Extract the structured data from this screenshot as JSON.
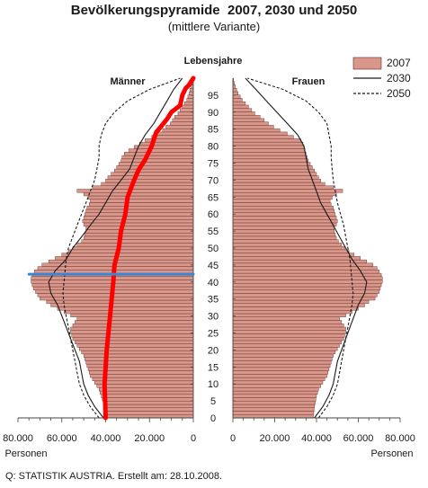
{
  "chart_data": {
    "type": "bar",
    "title": "Bevölkerungspyramide  2007, 2030 und 2050",
    "subtitle": "(mittlere Variante)",
    "age_axis_label": "Lebensjahre",
    "left_label": "Männer",
    "right_label": "Frauen",
    "unit_label_left": "Personen",
    "unit_label_right": "Personen",
    "source": "Q: STATISTIK AUSTRIA. Erstellt am: 28.10.2008.",
    "age_ticks": [
      "0",
      "5",
      "10",
      "15",
      "20",
      "25",
      "30",
      "35",
      "40",
      "45",
      "50",
      "55",
      "60",
      "65",
      "70",
      "75",
      "80",
      "85",
      "90",
      "95"
    ],
    "x_ticks_left": [
      "80.000",
      "60.000",
      "40.000",
      "20.000",
      "0"
    ],
    "x_ticks_right": [
      "0",
      "20.000",
      "40.000",
      "60.000",
      "80.000"
    ],
    "xlim": [
      0,
      80000
    ],
    "ylim": [
      0,
      100
    ],
    "legend": [
      {
        "label": "2007",
        "style": "bar"
      },
      {
        "label": "2030",
        "style": "solid"
      },
      {
        "label": "2050",
        "style": "dashed"
      }
    ],
    "legend_placement": "top-right",
    "colors": {
      "bar_fill": "#d9968a",
      "bar_stroke": "#5a2a22",
      "red_overlay": "#ff0000",
      "blue_overlay": "#3a86d6",
      "axis": "#444444"
    },
    "ages": [
      0,
      1,
      2,
      3,
      4,
      5,
      6,
      7,
      8,
      9,
      10,
      11,
      12,
      13,
      14,
      15,
      16,
      17,
      18,
      19,
      20,
      21,
      22,
      23,
      24,
      25,
      26,
      27,
      28,
      29,
      30,
      31,
      32,
      33,
      34,
      35,
      36,
      37,
      38,
      39,
      40,
      41,
      42,
      43,
      44,
      45,
      46,
      47,
      48,
      49,
      50,
      51,
      52,
      53,
      54,
      55,
      56,
      57,
      58,
      59,
      60,
      61,
      62,
      63,
      64,
      65,
      66,
      67,
      68,
      69,
      70,
      71,
      72,
      73,
      74,
      75,
      76,
      77,
      78,
      79,
      80,
      81,
      82,
      83,
      84,
      85,
      86,
      87,
      88,
      89,
      90,
      91,
      92,
      93,
      94,
      95,
      96,
      97,
      98,
      99,
      100
    ],
    "series": [
      {
        "name": "2007",
        "side": "Männer",
        "values": [
          40000,
          40200,
          40400,
          40600,
          41000,
          41500,
          42000,
          42500,
          43000,
          44000,
          45000,
          46000,
          47000,
          47500,
          48000,
          48500,
          49000,
          49500,
          50000,
          51000,
          52000,
          53000,
          54000,
          55000,
          55500,
          56000,
          56000,
          55000,
          54000,
          53000,
          56000,
          59000,
          62000,
          65000,
          67000,
          70000,
          71000,
          72000,
          73000,
          73500,
          74000,
          74000,
          73500,
          72500,
          71000,
          69000,
          66000,
          63000,
          60000,
          57000,
          55000,
          53000,
          51000,
          50000,
          49500,
          49000,
          49000,
          50000,
          50500,
          50000,
          49500,
          49000,
          48500,
          47500,
          47000,
          48000,
          50000,
          53000,
          46000,
          42000,
          40000,
          39000,
          37500,
          36000,
          35000,
          34000,
          33000,
          32500,
          31500,
          29500,
          27000,
          24500,
          22000,
          19000,
          16500,
          14000,
          12500,
          10500,
          9500,
          8500,
          7000,
          6000,
          5000,
          4000,
          3000,
          2500,
          2000,
          1500,
          1000,
          500,
          200
        ]
      },
      {
        "name": "2007",
        "side": "Frauen",
        "values": [
          38500,
          38700,
          38900,
          39100,
          39400,
          39700,
          40000,
          40500,
          41000,
          42000,
          43000,
          44000,
          45000,
          45500,
          46000,
          46500,
          47000,
          47500,
          48000,
          49000,
          50000,
          51000,
          52000,
          53000,
          53500,
          54000,
          54000,
          53000,
          52000,
          51000,
          54000,
          57000,
          60000,
          63000,
          65000,
          68000,
          69000,
          70000,
          70500,
          71000,
          71500,
          71500,
          71000,
          70000,
          69000,
          67000,
          64000,
          61000,
          58000,
          55500,
          53500,
          52000,
          50500,
          49500,
          49000,
          48500,
          48500,
          49500,
          50000,
          49500,
          49000,
          48500,
          48000,
          47000,
          46500,
          47500,
          49500,
          52500,
          48000,
          44000,
          42000,
          41000,
          40000,
          39000,
          38000,
          37000,
          36000,
          35500,
          35000,
          34500,
          34000,
          33500,
          32500,
          29000,
          26000,
          22500,
          19500,
          17000,
          15000,
          13000,
          10500,
          9000,
          7500,
          6000,
          4500,
          3500,
          2500,
          1800,
          1200,
          700,
          300
        ]
      },
      {
        "name": "2030",
        "side": "Männer",
        "values": [
          41000,
          45000,
          48000,
          50000,
          51000,
          52000,
          54000,
          56000,
          58000,
          60000,
          62000,
          65000,
          66000,
          63000,
          58000,
          55000,
          51000,
          47000,
          43000,
          40000,
          37000,
          33000,
          29000,
          27000,
          25000,
          22000,
          18000,
          15000,
          12000,
          9000,
          5000
        ]
      },
      {
        "name": "2030",
        "side": "Frauen",
        "values": [
          39000,
          43000,
          46000,
          48000,
          49000,
          50000,
          52000,
          54000,
          56000,
          58000,
          60000,
          63000,
          64000,
          61000,
          57000,
          54000,
          51000,
          48000,
          45000,
          42000,
          40000,
          38000,
          36000,
          35000,
          34000,
          31000,
          26000,
          21000,
          16000,
          11000,
          6000
        ]
      },
      {
        "name": "2050",
        "side": "Männer",
        "values": [
          43000,
          47000,
          50000,
          52000,
          53000,
          54000,
          55000,
          56000,
          57000,
          58000,
          59000,
          59500,
          59000,
          58500,
          58000,
          57000,
          55000,
          53000,
          51000,
          49000,
          47000,
          45000,
          44000,
          43000,
          43000,
          42000,
          40000,
          36000,
          30000,
          20000,
          6000
        ]
      },
      {
        "name": "2050",
        "side": "Frauen",
        "values": [
          41000,
          45000,
          48000,
          50000,
          51000,
          52000,
          53000,
          54000,
          55000,
          56000,
          57000,
          57500,
          57000,
          56500,
          56000,
          55000,
          54000,
          53000,
          51500,
          50000,
          49000,
          48000,
          47500,
          47000,
          47000,
          46000,
          45000,
          41000,
          35000,
          24000,
          7000
        ]
      }
    ],
    "line_ages": [
      0,
      3.3,
      6.7,
      10,
      13.3,
      16.7,
      20,
      23.3,
      26.7,
      30,
      33.3,
      36.7,
      40,
      43.3,
      46.7,
      50,
      53.3,
      56.7,
      60,
      63.3,
      66.7,
      70,
      73.3,
      76.7,
      80,
      83.3,
      86.7,
      90,
      93.3,
      96.7,
      100
    ],
    "overlays": [
      {
        "style": "red-freehand",
        "points": [
          [
            0,
            40000
          ],
          [
            10,
            40500
          ],
          [
            20,
            39500
          ],
          [
            30,
            38000
          ],
          [
            40,
            36500
          ],
          [
            45,
            36000
          ],
          [
            50,
            34000
          ],
          [
            55,
            33000
          ],
          [
            60,
            31000
          ],
          [
            65,
            30000
          ],
          [
            70,
            27000
          ],
          [
            73,
            25000
          ],
          [
            76,
            22000
          ],
          [
            80,
            19000
          ],
          [
            84,
            17000
          ],
          [
            88,
            12000
          ],
          [
            90,
            10000
          ],
          [
            92,
            6000
          ],
          [
            95,
            5000
          ],
          [
            97,
            3500
          ],
          [
            98,
            2000
          ],
          [
            100,
            0
          ]
        ]
      },
      {
        "style": "blue-marker",
        "points": [
          [
            42.3,
            75000
          ],
          [
            42.3,
            0
          ]
        ]
      }
    ]
  }
}
